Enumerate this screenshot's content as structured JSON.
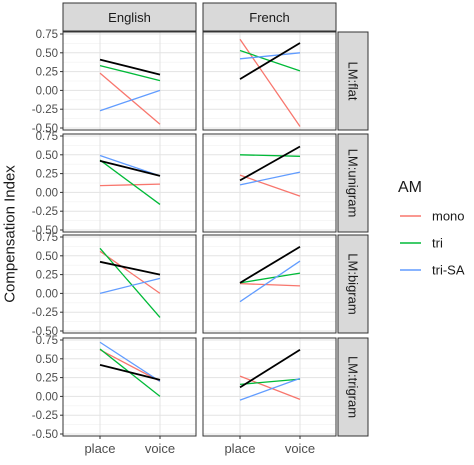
{
  "chart_data": {
    "type": "line",
    "ylabel": "Compensation Index",
    "xlabel": "",
    "categories": [
      "place",
      "voice"
    ],
    "ylim": [
      -0.5,
      0.75
    ],
    "yticks": [
      "0.75",
      "0.50",
      "0.25",
      "0.00",
      "-0.25",
      "-0.50"
    ],
    "ytick_values": [
      0.75,
      0.5,
      0.25,
      0,
      -0.25,
      -0.5
    ],
    "grid": true,
    "columns": [
      "English",
      "French"
    ],
    "rows": [
      "LM:flat",
      "LM:unigram",
      "LM:bigram",
      "LM:trigram"
    ],
    "legend": {
      "title": "AM",
      "placement": "right",
      "entries": [
        {
          "label": "mono",
          "color": "#F8766D"
        },
        {
          "label": "tri",
          "color": "#00BA38"
        },
        {
          "label": "tri-SA",
          "color": "#619CFF"
        }
      ]
    },
    "black_line_color": "#000000",
    "panels": [
      {
        "row": "LM:flat",
        "col": "English",
        "series": [
          {
            "name": "mono",
            "values": [
              0.23,
              -0.45
            ]
          },
          {
            "name": "tri",
            "values": [
              0.33,
              0.13
            ]
          },
          {
            "name": "tri-SA",
            "values": [
              -0.27,
              0.0
            ]
          },
          {
            "name": "",
            "values": [
              0.41,
              0.21
            ]
          }
        ]
      },
      {
        "row": "LM:flat",
        "col": "French",
        "series": [
          {
            "name": "mono",
            "values": [
              0.68,
              -0.48
            ]
          },
          {
            "name": "tri",
            "values": [
              0.53,
              0.26
            ]
          },
          {
            "name": "tri-SA",
            "values": [
              0.42,
              0.5
            ]
          },
          {
            "name": "",
            "values": [
              0.15,
              0.63
            ]
          }
        ]
      },
      {
        "row": "LM:unigram",
        "col": "English",
        "series": [
          {
            "name": "mono",
            "values": [
              0.09,
              0.11
            ]
          },
          {
            "name": "tri",
            "values": [
              0.43,
              -0.16
            ]
          },
          {
            "name": "tri-SA",
            "values": [
              0.49,
              0.22
            ]
          },
          {
            "name": "",
            "values": [
              0.42,
              0.22
            ]
          }
        ]
      },
      {
        "row": "LM:unigram",
        "col": "French",
        "series": [
          {
            "name": "mono",
            "values": [
              0.23,
              -0.05
            ]
          },
          {
            "name": "tri",
            "values": [
              0.5,
              0.48
            ]
          },
          {
            "name": "tri-SA",
            "values": [
              0.1,
              0.27
            ]
          },
          {
            "name": "",
            "values": [
              0.16,
              0.61
            ]
          }
        ]
      },
      {
        "row": "LM:bigram",
        "col": "English",
        "series": [
          {
            "name": "mono",
            "values": [
              0.56,
              0.0
            ]
          },
          {
            "name": "tri",
            "values": [
              0.6,
              -0.32
            ]
          },
          {
            "name": "tri-SA",
            "values": [
              0.0,
              0.2
            ]
          },
          {
            "name": "",
            "values": [
              0.42,
              0.25
            ]
          }
        ]
      },
      {
        "row": "LM:bigram",
        "col": "French",
        "series": [
          {
            "name": "mono",
            "values": [
              0.13,
              0.1
            ]
          },
          {
            "name": "tri",
            "values": [
              0.14,
              0.27
            ]
          },
          {
            "name": "tri-SA",
            "values": [
              -0.11,
              0.43
            ]
          },
          {
            "name": "",
            "values": [
              0.14,
              0.62
            ]
          }
        ]
      },
      {
        "row": "LM:trigram",
        "col": "English",
        "series": [
          {
            "name": "mono",
            "values": [
              0.62,
              0.2
            ]
          },
          {
            "name": "tri",
            "values": [
              0.63,
              0.0
            ]
          },
          {
            "name": "tri-SA",
            "values": [
              0.72,
              0.2
            ]
          },
          {
            "name": "",
            "values": [
              0.42,
              0.22
            ]
          }
        ]
      },
      {
        "row": "LM:trigram",
        "col": "French",
        "series": [
          {
            "name": "mono",
            "values": [
              0.27,
              -0.04
            ]
          },
          {
            "name": "tri",
            "values": [
              0.16,
              0.23
            ]
          },
          {
            "name": "tri-SA",
            "values": [
              -0.05,
              0.24
            ]
          },
          {
            "name": "",
            "values": [
              0.12,
              0.62
            ]
          }
        ]
      }
    ]
  }
}
